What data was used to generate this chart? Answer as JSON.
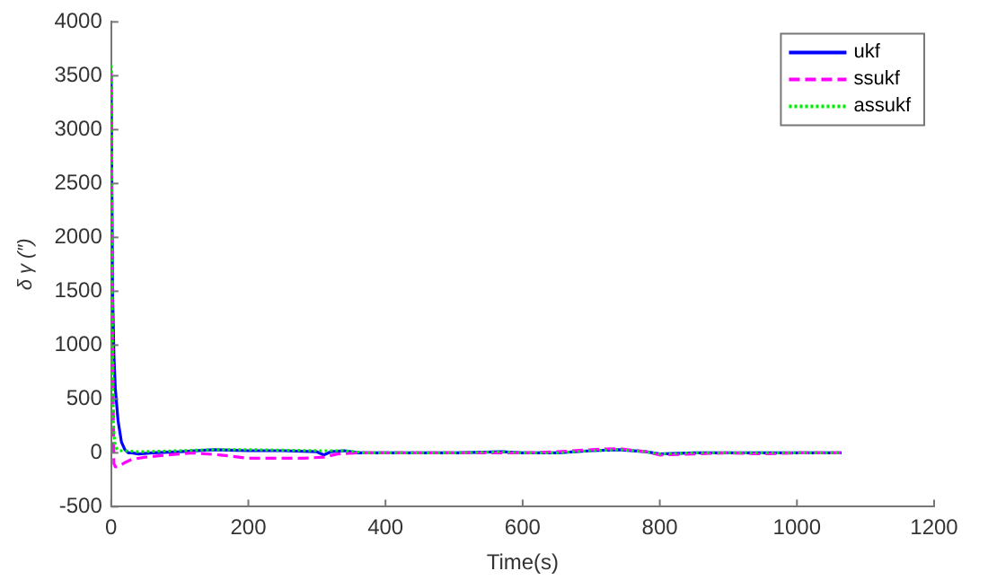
{
  "chart_data": {
    "type": "line",
    "xlabel": "Time(s)",
    "ylabel": "δ γ (″)",
    "xlim": [
      0,
      1200
    ],
    "xticks": [
      0,
      200,
      400,
      600,
      800,
      1000,
      1200
    ],
    "ylim": [
      -500,
      4000
    ],
    "yticks": [
      -500,
      0,
      500,
      1000,
      1500,
      2000,
      2500,
      3000,
      3500,
      4000
    ],
    "grid": false,
    "legend": "top right",
    "marker": "none",
    "series": [
      {
        "name": "ukf",
        "color": "#0000ff",
        "line_style": "solid",
        "x": [
          0,
          2,
          4,
          6,
          10,
          15,
          20,
          25,
          30,
          40,
          60,
          100,
          150,
          200,
          250,
          300,
          310,
          320,
          340,
          360,
          400,
          500,
          570,
          600,
          650,
          700,
          740,
          780,
          800,
          850,
          900,
          950,
          1000,
          1065
        ],
        "values": [
          3500,
          1500,
          900,
          600,
          300,
          100,
          30,
          0,
          0,
          -10,
          0,
          10,
          30,
          20,
          20,
          10,
          -20,
          10,
          20,
          0,
          0,
          0,
          10,
          0,
          0,
          20,
          30,
          10,
          -10,
          0,
          0,
          0,
          0,
          0
        ]
      },
      {
        "name": "ssukf",
        "color": "#ff00ff",
        "line_style": "dashed",
        "x": [
          0,
          2,
          4,
          6,
          10,
          20,
          30,
          50,
          80,
          120,
          160,
          200,
          250,
          280,
          310,
          330,
          360,
          400,
          500,
          570,
          600,
          650,
          700,
          740,
          780,
          800,
          850,
          900,
          950,
          1000,
          1065
        ],
        "values": [
          3550,
          1000,
          -100,
          -130,
          -130,
          -90,
          -60,
          -40,
          -20,
          0,
          -20,
          -50,
          -50,
          -50,
          -40,
          -10,
          0,
          0,
          0,
          0,
          0,
          10,
          30,
          40,
          10,
          -20,
          -10,
          0,
          -10,
          0,
          0
        ]
      },
      {
        "name": "assukf",
        "color": "#00ee00",
        "line_style": "dotted",
        "x": [
          0,
          2,
          3,
          5,
          8,
          12,
          20,
          40,
          100,
          150,
          200,
          300,
          340,
          370,
          400,
          500,
          570,
          600,
          650,
          700,
          740,
          780,
          800,
          850,
          900,
          950,
          1000,
          1065
        ],
        "values": [
          3600,
          1000,
          300,
          100,
          40,
          20,
          20,
          10,
          20,
          30,
          30,
          20,
          20,
          0,
          0,
          0,
          10,
          0,
          0,
          20,
          30,
          10,
          -10,
          0,
          0,
          0,
          0,
          0
        ]
      }
    ]
  }
}
